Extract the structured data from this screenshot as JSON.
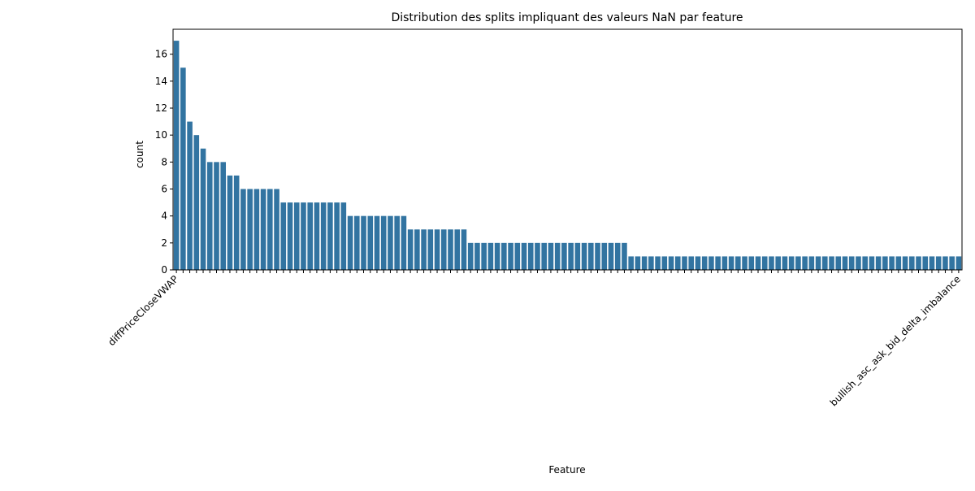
{
  "chart_data": {
    "type": "bar",
    "title": "Distribution des splits impliquant des valeurs NaN par feature",
    "xlabel": "Feature",
    "ylabel": "count",
    "color": "#3274a1",
    "ylim": [
      0,
      17.85
    ],
    "yticks": [
      0,
      2,
      4,
      6,
      8,
      10,
      12,
      14,
      16
    ],
    "grid": false,
    "categories": [
      "diffPriceCloseVWAP",
      null,
      null,
      null,
      null,
      null,
      null,
      null,
      null,
      null,
      null,
      null,
      null,
      null,
      null,
      null,
      null,
      null,
      null,
      null,
      null,
      null,
      null,
      null,
      null,
      null,
      null,
      null,
      null,
      null,
      null,
      null,
      null,
      null,
      null,
      null,
      null,
      null,
      null,
      null,
      null,
      null,
      null,
      null,
      null,
      null,
      null,
      null,
      null,
      null,
      null,
      null,
      null,
      null,
      null,
      null,
      null,
      null,
      null,
      null,
      null,
      null,
      null,
      null,
      null,
      null,
      null,
      null,
      null,
      null,
      null,
      null,
      null,
      null,
      null,
      null,
      null,
      null,
      null,
      null,
      null,
      null,
      null,
      null,
      null,
      null,
      null,
      null,
      null,
      null,
      null,
      null,
      null,
      null,
      null,
      null,
      null,
      null,
      null,
      null,
      null,
      null,
      null,
      null,
      null,
      null,
      null,
      null,
      null,
      null,
      null,
      null,
      null,
      null,
      null,
      null,
      null,
      "bullish_asc_ask_bid_delta_imbalance"
    ],
    "values": [
      17,
      15,
      11,
      10,
      9,
      8,
      8,
      8,
      7,
      7,
      6,
      6,
      6,
      6,
      6,
      6,
      5,
      5,
      5,
      5,
      5,
      5,
      5,
      5,
      5,
      5,
      4,
      4,
      4,
      4,
      4,
      4,
      4,
      4,
      4,
      3,
      3,
      3,
      3,
      3,
      3,
      3,
      3,
      3,
      2,
      2,
      2,
      2,
      2,
      2,
      2,
      2,
      2,
      2,
      2,
      2,
      2,
      2,
      2,
      2,
      2,
      2,
      2,
      2,
      2,
      2,
      2,
      2,
      1,
      1,
      1,
      1,
      1,
      1,
      1,
      1,
      1,
      1,
      1,
      1,
      1,
      1,
      1,
      1,
      1,
      1,
      1,
      1,
      1,
      1,
      1,
      1,
      1,
      1,
      1,
      1,
      1,
      1,
      1,
      1,
      1,
      1,
      1,
      1,
      1,
      1,
      1,
      1,
      1,
      1,
      1,
      1,
      1,
      1,
      1,
      1,
      1,
      1
    ]
  }
}
